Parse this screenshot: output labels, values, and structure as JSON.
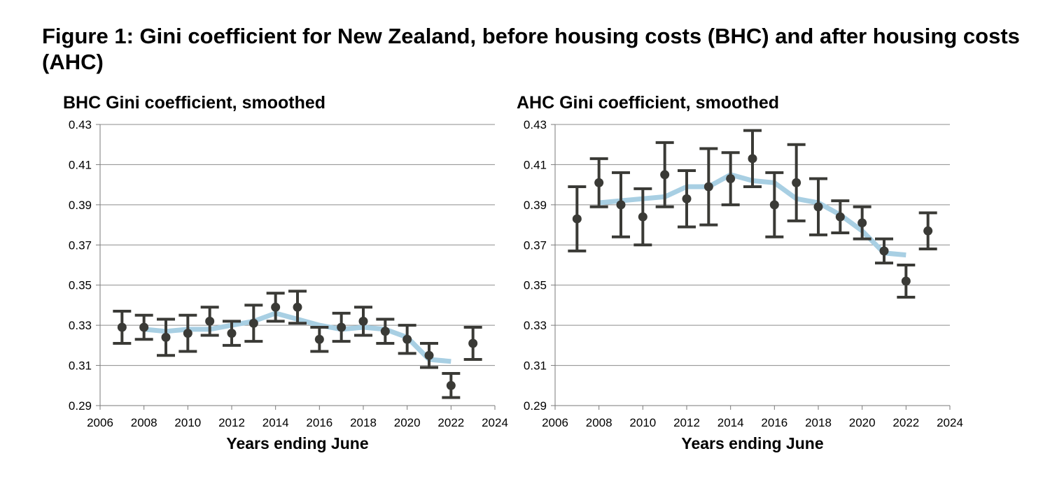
{
  "title": "Figure 1: Gini coefficient for New Zealand, before housing costs (BHC) and after housing costs (AHC)",
  "colors": {
    "smoothed": "#a8cfe3",
    "points": "#3a3a36",
    "grid": "#8c8c8c",
    "axis": "#7a7a7a"
  },
  "chart_data": [
    {
      "type": "scatter",
      "title": "BHC Gini coefficient, smoothed",
      "xlabel": "Years ending June",
      "ylabel": "",
      "xlim": [
        2006,
        2024
      ],
      "ylim": [
        0.29,
        0.43
      ],
      "xticks": [
        "2006",
        "2008",
        "2010",
        "2012",
        "2014",
        "2016",
        "2018",
        "2020",
        "2022",
        "2024"
      ],
      "yticks": [
        "0.29",
        "0.31",
        "0.33",
        "0.35",
        "0.37",
        "0.39",
        "0.41",
        "0.43"
      ],
      "grid": true,
      "points": [
        {
          "x": 2007,
          "y": 0.329,
          "low": 0.321,
          "high": 0.337
        },
        {
          "x": 2008,
          "y": 0.329,
          "low": 0.323,
          "high": 0.335
        },
        {
          "x": 2009,
          "y": 0.324,
          "low": 0.315,
          "high": 0.333
        },
        {
          "x": 2010,
          "y": 0.326,
          "low": 0.317,
          "high": 0.335
        },
        {
          "x": 2011,
          "y": 0.332,
          "low": 0.325,
          "high": 0.339
        },
        {
          "x": 2012,
          "y": 0.326,
          "low": 0.32,
          "high": 0.332
        },
        {
          "x": 2013,
          "y": 0.331,
          "low": 0.322,
          "high": 0.34
        },
        {
          "x": 2014,
          "y": 0.339,
          "low": 0.332,
          "high": 0.346
        },
        {
          "x": 2015,
          "y": 0.339,
          "low": 0.331,
          "high": 0.347
        },
        {
          "x": 2016,
          "y": 0.323,
          "low": 0.317,
          "high": 0.329
        },
        {
          "x": 2017,
          "y": 0.329,
          "low": 0.322,
          "high": 0.336
        },
        {
          "x": 2018,
          "y": 0.332,
          "low": 0.325,
          "high": 0.339
        },
        {
          "x": 2019,
          "y": 0.327,
          "low": 0.321,
          "high": 0.333
        },
        {
          "x": 2020,
          "y": 0.323,
          "low": 0.316,
          "high": 0.33
        },
        {
          "x": 2021,
          "y": 0.315,
          "low": 0.309,
          "high": 0.321
        },
        {
          "x": 2022,
          "y": 0.3,
          "low": 0.294,
          "high": 0.306
        },
        {
          "x": 2023,
          "y": 0.321,
          "low": 0.313,
          "high": 0.329
        }
      ],
      "smoothed": {
        "x": [
          2008,
          2009,
          2010,
          2011,
          2012,
          2013,
          2014,
          2015,
          2016,
          2017,
          2018,
          2019,
          2020,
          2021,
          2022
        ],
        "y": [
          0.328,
          0.327,
          0.328,
          0.328,
          0.33,
          0.332,
          0.336,
          0.333,
          0.33,
          0.328,
          0.329,
          0.328,
          0.324,
          0.313,
          0.312
        ]
      }
    },
    {
      "type": "scatter",
      "title": "AHC Gini coefficient, smoothed",
      "xlabel": "Years ending June",
      "ylabel": "",
      "xlim": [
        2006,
        2024
      ],
      "ylim": [
        0.29,
        0.43
      ],
      "xticks": [
        "2006",
        "2008",
        "2010",
        "2012",
        "2014",
        "2016",
        "2018",
        "2020",
        "2022",
        "2024"
      ],
      "yticks": [
        "0.29",
        "0.31",
        "0.33",
        "0.35",
        "0.37",
        "0.39",
        "0.41",
        "0.43"
      ],
      "grid": true,
      "points": [
        {
          "x": 2007,
          "y": 0.383,
          "low": 0.367,
          "high": 0.399
        },
        {
          "x": 2008,
          "y": 0.401,
          "low": 0.389,
          "high": 0.413
        },
        {
          "x": 2009,
          "y": 0.39,
          "low": 0.374,
          "high": 0.406
        },
        {
          "x": 2010,
          "y": 0.384,
          "low": 0.37,
          "high": 0.398
        },
        {
          "x": 2011,
          "y": 0.405,
          "low": 0.389,
          "high": 0.421
        },
        {
          "x": 2012,
          "y": 0.393,
          "low": 0.379,
          "high": 0.407
        },
        {
          "x": 2013,
          "y": 0.399,
          "low": 0.38,
          "high": 0.418
        },
        {
          "x": 2014,
          "y": 0.403,
          "low": 0.39,
          "high": 0.416
        },
        {
          "x": 2015,
          "y": 0.413,
          "low": 0.399,
          "high": 0.427
        },
        {
          "x": 2016,
          "y": 0.39,
          "low": 0.374,
          "high": 0.406
        },
        {
          "x": 2017,
          "y": 0.401,
          "low": 0.382,
          "high": 0.42
        },
        {
          "x": 2018,
          "y": 0.389,
          "low": 0.375,
          "high": 0.403
        },
        {
          "x": 2019,
          "y": 0.384,
          "low": 0.376,
          "high": 0.392
        },
        {
          "x": 2020,
          "y": 0.381,
          "low": 0.373,
          "high": 0.389
        },
        {
          "x": 2021,
          "y": 0.367,
          "low": 0.361,
          "high": 0.373
        },
        {
          "x": 2022,
          "y": 0.352,
          "low": 0.344,
          "high": 0.36
        },
        {
          "x": 2023,
          "y": 0.377,
          "low": 0.368,
          "high": 0.386
        }
      ],
      "smoothed": {
        "x": [
          2008,
          2009,
          2010,
          2011,
          2012,
          2013,
          2014,
          2015,
          2016,
          2017,
          2018,
          2019,
          2020,
          2021,
          2022
        ],
        "y": [
          0.391,
          0.392,
          0.393,
          0.394,
          0.399,
          0.399,
          0.405,
          0.402,
          0.401,
          0.393,
          0.391,
          0.385,
          0.377,
          0.366,
          0.365
        ]
      }
    }
  ]
}
